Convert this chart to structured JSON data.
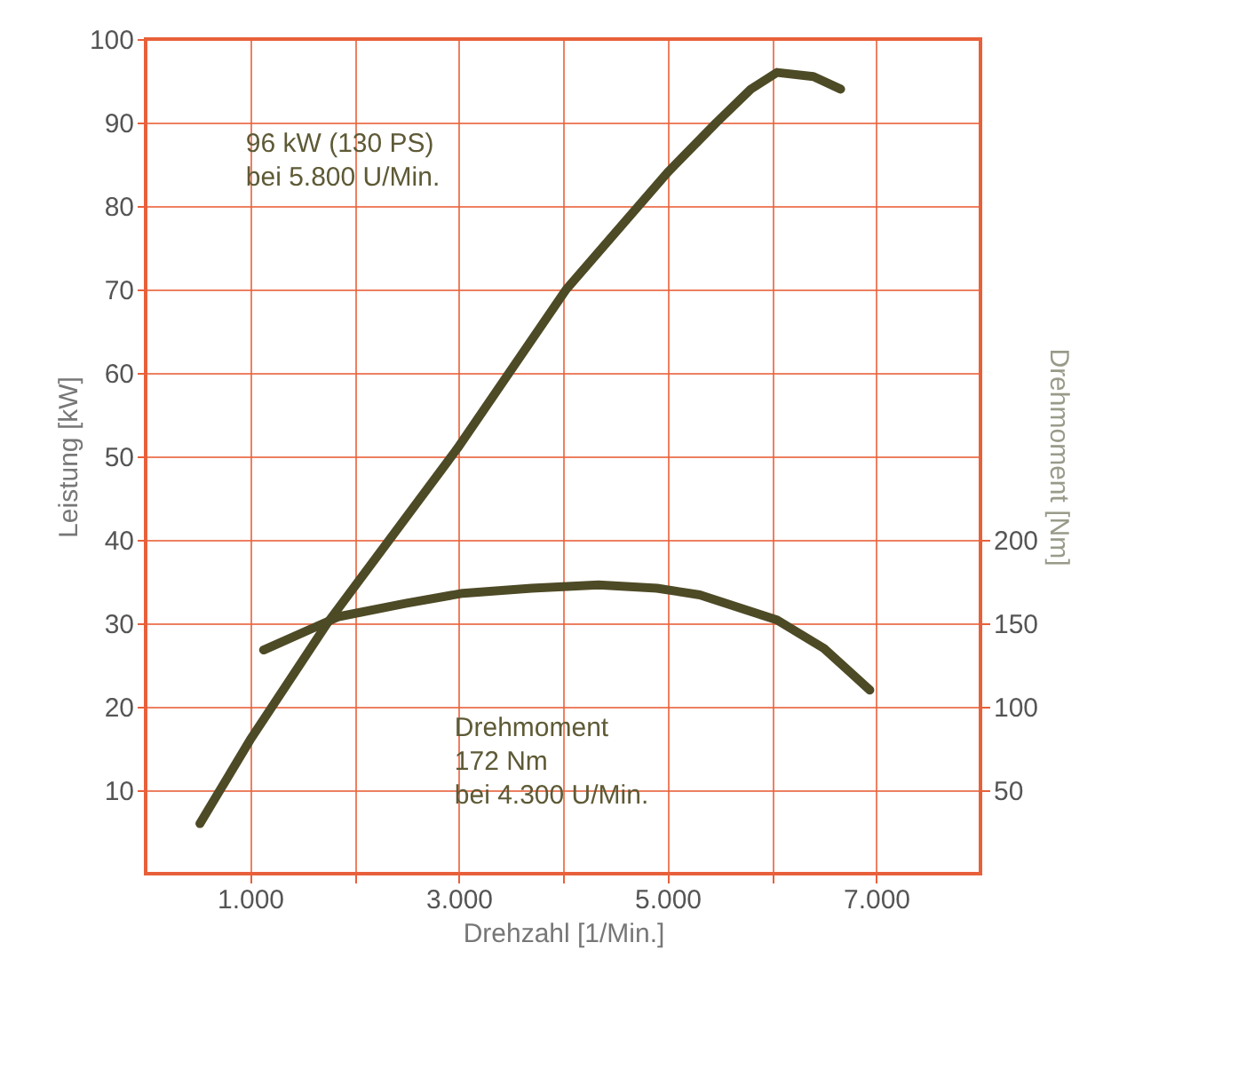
{
  "chart_data": {
    "type": "line",
    "xlabel": "Drehzahl [1/Min.]",
    "ylabel": "Leistung [kW]",
    "y2label": "Drehmoment [Nm]",
    "xlim": [
      0,
      8000
    ],
    "xticks": [
      {
        "value": 1000,
        "label": "1.000"
      },
      {
        "value": 2000,
        "label": null
      },
      {
        "value": 3000,
        "label": "3.000"
      },
      {
        "value": 4000,
        "label": null
      },
      {
        "value": 5000,
        "label": "5.000"
      },
      {
        "value": 6000,
        "label": null
      },
      {
        "value": 7000,
        "label": "7.000"
      }
    ],
    "ylim": [
      0,
      100
    ],
    "yticks": [
      10,
      20,
      30,
      40,
      50,
      60,
      70,
      80,
      90,
      100
    ],
    "y2lim": [
      0,
      500
    ],
    "y2ticks": [
      50,
      100,
      150,
      200
    ],
    "grid": true,
    "line_style": "solid",
    "series": [
      {
        "color": "#4d4a26",
        "x": [
          520,
          1000,
          1740,
          2990,
          4030,
          5000,
          5470,
          5800,
          6050,
          6400,
          6660
        ],
        "values": [
          6,
          16,
          30,
          51,
          70,
          84,
          90,
          94,
          96,
          95.5,
          94
        ]
      },
      {
        "color": "#4d4a26",
        "axis": "y2",
        "x": [
          1130,
          1850,
          2500,
          3040,
          3700,
          4340,
          4900,
          5310,
          6050,
          6500,
          6940
        ],
        "values": [
          134,
          154,
          162,
          168,
          171,
          173,
          171,
          167,
          152,
          135,
          110
        ]
      }
    ],
    "annotations": [
      "96 kW (130 PS)\nbei 5.800 U/Min.",
      "Drehmoment\n172 Nm\nbei 4.300 U/Min."
    ]
  }
}
